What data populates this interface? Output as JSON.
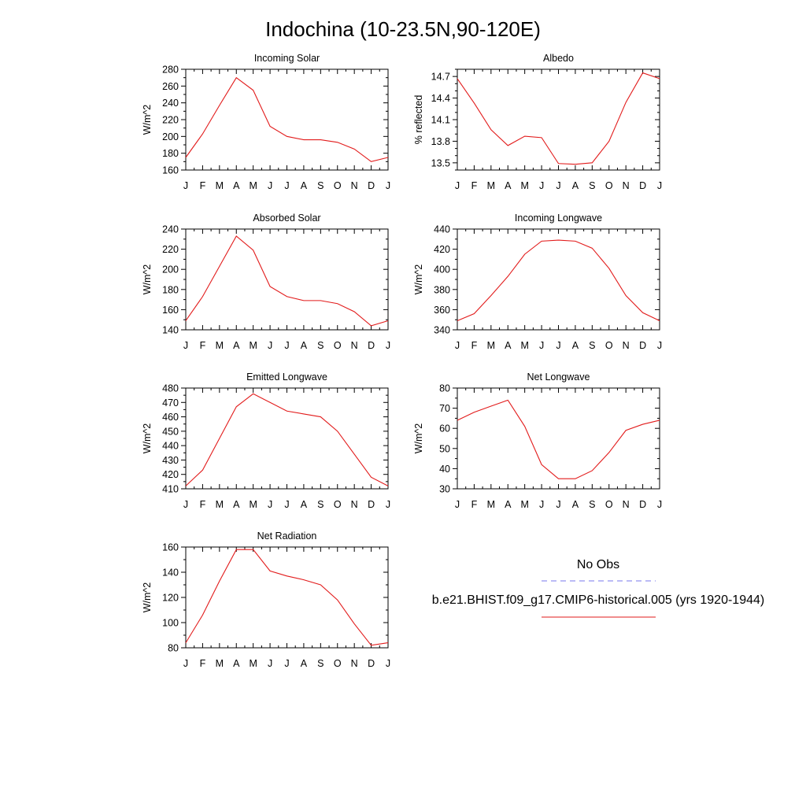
{
  "page_title": "Indochina (10-23.5N,90-120E)",
  "month_labels": [
    "J",
    "F",
    "M",
    "A",
    "M",
    "J",
    "J",
    "A",
    "S",
    "O",
    "N",
    "D",
    "J"
  ],
  "legend": {
    "entries": [
      {
        "label": "No Obs",
        "color": "#7777ee",
        "style": "dashed"
      },
      {
        "label": "b.e21.BHIST.f09_g17.CMIP6-historical.005 (yrs 1920-1944)",
        "color": "#e21b1b",
        "style": "solid"
      }
    ]
  },
  "chart_data": [
    {
      "type": "line",
      "title": "Incoming Solar",
      "ylabel": "W/m^2",
      "ylim": [
        160,
        280
      ],
      "yticks": [
        160,
        180,
        200,
        220,
        240,
        260,
        280
      ],
      "yticklabels": [
        "160",
        "180",
        "200",
        "220",
        "240",
        "260",
        "280"
      ],
      "yminor": 10,
      "series": [
        {
          "name": "model",
          "color": "#e21b1b",
          "values": [
            175,
            203,
            237,
            270,
            255,
            212,
            200,
            196,
            196,
            193,
            185,
            170,
            175
          ]
        }
      ]
    },
    {
      "type": "line",
      "title": "Albedo",
      "ylabel": "% reflected",
      "ylim": [
        13.4,
        14.8
      ],
      "yticks": [
        13.5,
        13.8,
        14.1,
        14.4,
        14.7
      ],
      "yticklabels": [
        "13.5",
        "13.8",
        "14.1",
        "14.4",
        "14.7"
      ],
      "yminor": 0.1,
      "series": [
        {
          "name": "model",
          "color": "#e21b1b",
          "values": [
            14.67,
            14.33,
            13.96,
            13.74,
            13.87,
            13.85,
            13.49,
            13.48,
            13.5,
            13.8,
            14.34,
            14.75,
            14.67
          ]
        }
      ]
    },
    {
      "type": "line",
      "title": "Absorbed Solar",
      "ylabel": "W/m^2",
      "ylim": [
        140,
        240
      ],
      "yticks": [
        140,
        160,
        180,
        200,
        220,
        240
      ],
      "yticklabels": [
        "140",
        "160",
        "180",
        "200",
        "220",
        "240"
      ],
      "yminor": 10,
      "series": [
        {
          "name": "model",
          "color": "#e21b1b",
          "values": [
            149,
            173,
            203,
            233,
            219,
            183,
            173,
            169,
            169,
            166,
            158,
            144,
            149
          ]
        }
      ]
    },
    {
      "type": "line",
      "title": "Incoming Longwave",
      "ylabel": "W/m^2",
      "ylim": [
        340,
        440
      ],
      "yticks": [
        340,
        360,
        380,
        400,
        420,
        440
      ],
      "yticklabels": [
        "340",
        "360",
        "380",
        "400",
        "420",
        "440"
      ],
      "yminor": 10,
      "series": [
        {
          "name": "model",
          "color": "#e21b1b",
          "values": [
            349,
            356,
            374,
            393,
            415,
            428,
            429,
            428,
            421,
            401,
            374,
            357,
            349
          ]
        }
      ]
    },
    {
      "type": "line",
      "title": "Emitted Longwave",
      "ylabel": "W/m^2",
      "ylim": [
        410,
        480
      ],
      "yticks": [
        410,
        420,
        430,
        440,
        450,
        460,
        470,
        480
      ],
      "yticklabels": [
        "410",
        "420",
        "430",
        "440",
        "450",
        "460",
        "470",
        "480"
      ],
      "yminor": 5,
      "series": [
        {
          "name": "model",
          "color": "#e21b1b",
          "values": [
            412,
            423,
            445,
            467,
            476,
            470,
            464,
            462,
            460,
            450,
            434,
            418,
            412
          ]
        }
      ]
    },
    {
      "type": "line",
      "title": "Net Longwave",
      "ylabel": "W/m^2",
      "ylim": [
        30,
        80
      ],
      "yticks": [
        30,
        40,
        50,
        60,
        70,
        80
      ],
      "yticklabels": [
        "30",
        "40",
        "50",
        "60",
        "70",
        "80"
      ],
      "yminor": 5,
      "series": [
        {
          "name": "model",
          "color": "#e21b1b",
          "values": [
            64,
            68,
            71,
            74,
            61,
            42,
            35,
            35,
            39,
            48,
            59,
            62,
            64
          ]
        }
      ]
    },
    {
      "type": "line",
      "title": "Net Radiation",
      "ylabel": "W/m^2",
      "ylim": [
        80,
        160
      ],
      "yticks": [
        80,
        100,
        120,
        140,
        160
      ],
      "yticklabels": [
        "80",
        "100",
        "120",
        "140",
        "160"
      ],
      "yminor": 10,
      "series": [
        {
          "name": "model",
          "color": "#e21b1b",
          "values": [
            84,
            106,
            133,
            158,
            158,
            141,
            137,
            134,
            130,
            118,
            99,
            82,
            84
          ]
        }
      ]
    }
  ]
}
